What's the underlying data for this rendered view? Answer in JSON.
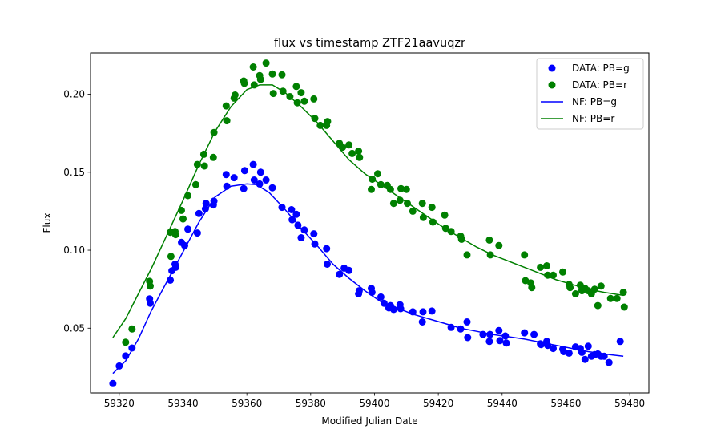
{
  "chart_data": {
    "type": "scatter",
    "title": "flux vs timestamp ZTF21aavuqzr",
    "xlabel": "Modified Julian Date",
    "ylabel": "Flux",
    "xlim": [
      59311,
      59486
    ],
    "ylim": [
      0.0085,
      0.2265
    ],
    "xticks": [
      59320,
      59340,
      59360,
      59380,
      59400,
      59420,
      59440,
      59460,
      59480
    ],
    "yticks": [
      0.05,
      0.1,
      0.15,
      0.2
    ],
    "grid": false,
    "legend_position": "top-right",
    "colors": {
      "g": "#0000ff",
      "r": "#008000"
    },
    "legend": [
      {
        "label": "DATA: PB=g",
        "kind": "marker",
        "color": "#0000ff"
      },
      {
        "label": "DATA: PB=r",
        "kind": "marker",
        "color": "#008000"
      },
      {
        "label": "NF: PB=g",
        "kind": "line",
        "color": "#0000ff"
      },
      {
        "label": "NF: PB=r",
        "kind": "line",
        "color": "#008000"
      }
    ],
    "series": [
      {
        "name": "DATA: PB=g",
        "kind": "scatter",
        "color": "#0000ff",
        "points": [
          [
            59318,
            0.0145
          ],
          [
            59320,
            0.0258
          ],
          [
            59322,
            0.0322
          ],
          [
            59324,
            0.0373
          ],
          [
            59329.5,
            0.0688
          ],
          [
            59329.7,
            0.066
          ],
          [
            59336,
            0.0808
          ],
          [
            59336.5,
            0.0868
          ],
          [
            59337.5,
            0.091
          ],
          [
            59337.7,
            0.089
          ],
          [
            59339.5,
            0.105
          ],
          [
            59340.5,
            0.103
          ],
          [
            59341.5,
            0.1135
          ],
          [
            59344.5,
            0.111
          ],
          [
            59345,
            0.1235
          ],
          [
            59347,
            0.1265
          ],
          [
            59347.2,
            0.13
          ],
          [
            59349.5,
            0.129
          ],
          [
            59349.7,
            0.1315
          ],
          [
            59353.5,
            0.1485
          ],
          [
            59353.7,
            0.141
          ],
          [
            59356,
            0.1465
          ],
          [
            59359,
            0.1395
          ],
          [
            59359.3,
            0.151
          ],
          [
            59362,
            0.155
          ],
          [
            59362.3,
            0.145
          ],
          [
            59364,
            0.1425
          ],
          [
            59364.3,
            0.15
          ],
          [
            59366,
            0.145
          ],
          [
            59368,
            0.14
          ],
          [
            59371,
            0.1275
          ],
          [
            59374,
            0.126
          ],
          [
            59374.2,
            0.1195
          ],
          [
            59375.5,
            0.123
          ],
          [
            59376,
            0.116
          ],
          [
            59377,
            0.108
          ],
          [
            59378,
            0.113
          ],
          [
            59381,
            0.1105
          ],
          [
            59381.3,
            0.104
          ],
          [
            59385,
            0.101
          ],
          [
            59385.2,
            0.091
          ],
          [
            59389,
            0.0845
          ],
          [
            59390.5,
            0.0885
          ],
          [
            59392,
            0.087
          ],
          [
            59395,
            0.072
          ],
          [
            59395.2,
            0.074
          ],
          [
            59399,
            0.0755
          ],
          [
            59399.2,
            0.073
          ],
          [
            59402,
            0.07
          ],
          [
            59403,
            0.066
          ],
          [
            59404.5,
            0.063
          ],
          [
            59405,
            0.0645
          ],
          [
            59406,
            0.062
          ],
          [
            59408,
            0.065
          ],
          [
            59408.2,
            0.0625
          ],
          [
            59412,
            0.0605
          ],
          [
            59415,
            0.054
          ],
          [
            59415.2,
            0.0605
          ],
          [
            59418,
            0.061
          ],
          [
            59424,
            0.0505
          ],
          [
            59427,
            0.0495
          ],
          [
            59429,
            0.054
          ],
          [
            59429.2,
            0.044
          ],
          [
            59434,
            0.046
          ],
          [
            59436,
            0.0415
          ],
          [
            59436.2,
            0.046
          ],
          [
            59439,
            0.0485
          ],
          [
            59439.3,
            0.042
          ],
          [
            59441,
            0.045
          ],
          [
            59441.3,
            0.0405
          ],
          [
            59447,
            0.047
          ],
          [
            59450,
            0.046
          ],
          [
            59452,
            0.04
          ],
          [
            59452.2,
            0.0395
          ],
          [
            59454,
            0.0415
          ],
          [
            59454.3,
            0.039
          ],
          [
            59456,
            0.037
          ],
          [
            59459,
            0.0365
          ],
          [
            59459.3,
            0.035
          ],
          [
            59461,
            0.034
          ],
          [
            59463,
            0.038
          ],
          [
            59464.5,
            0.037
          ],
          [
            59465,
            0.0345
          ],
          [
            59466,
            0.03
          ],
          [
            59467,
            0.0385
          ],
          [
            59468,
            0.032
          ],
          [
            59469,
            0.033
          ],
          [
            59470,
            0.0335
          ],
          [
            59471,
            0.032
          ],
          [
            59472,
            0.032
          ],
          [
            59473.5,
            0.028
          ],
          [
            59477,
            0.0415
          ]
        ]
      },
      {
        "name": "DATA: PB=r",
        "kind": "scatter",
        "color": "#008000",
        "points": [
          [
            59322,
            0.041
          ],
          [
            59324,
            0.0495
          ],
          [
            59329.5,
            0.08
          ],
          [
            59329.7,
            0.077
          ],
          [
            59336,
            0.1115
          ],
          [
            59336.2,
            0.096
          ],
          [
            59337.5,
            0.112
          ],
          [
            59337.7,
            0.11
          ],
          [
            59339.5,
            0.1255
          ],
          [
            59340,
            0.12
          ],
          [
            59341.5,
            0.135
          ],
          [
            59344,
            0.142
          ],
          [
            59344.5,
            0.155
          ],
          [
            59346.5,
            0.1615
          ],
          [
            59346.7,
            0.154
          ],
          [
            59349.5,
            0.1595
          ],
          [
            59349.7,
            0.1755
          ],
          [
            59353.5,
            0.1925
          ],
          [
            59353.7,
            0.183
          ],
          [
            59356,
            0.1975
          ],
          [
            59356.3,
            0.1995
          ],
          [
            59359,
            0.2085
          ],
          [
            59359.2,
            0.207
          ],
          [
            59362,
            0.2175
          ],
          [
            59362.3,
            0.206
          ],
          [
            59364,
            0.212
          ],
          [
            59364.3,
            0.2095
          ],
          [
            59366,
            0.22
          ],
          [
            59368,
            0.213
          ],
          [
            59368.3,
            0.2005
          ],
          [
            59371,
            0.2125
          ],
          [
            59371.3,
            0.202
          ],
          [
            59373.5,
            0.1985
          ],
          [
            59375.5,
            0.205
          ],
          [
            59375.8,
            0.1945
          ],
          [
            59377,
            0.201
          ],
          [
            59378,
            0.1955
          ],
          [
            59381,
            0.197
          ],
          [
            59381.3,
            0.1845
          ],
          [
            59383,
            0.18
          ],
          [
            59385,
            0.18
          ],
          [
            59385.3,
            0.1825
          ],
          [
            59389,
            0.1685
          ],
          [
            59390,
            0.166
          ],
          [
            59392,
            0.1675
          ],
          [
            59393,
            0.162
          ],
          [
            59395,
            0.1635
          ],
          [
            59395.3,
            0.1595
          ],
          [
            59399,
            0.139
          ],
          [
            59399.3,
            0.1455
          ],
          [
            59401,
            0.149
          ],
          [
            59402,
            0.142
          ],
          [
            59404,
            0.1415
          ],
          [
            59405,
            0.139
          ],
          [
            59406,
            0.13
          ],
          [
            59408,
            0.132
          ],
          [
            59408.3,
            0.1395
          ],
          [
            59410,
            0.139
          ],
          [
            59410.3,
            0.13
          ],
          [
            59412,
            0.125
          ],
          [
            59415,
            0.13
          ],
          [
            59415.3,
            0.121
          ],
          [
            59418,
            0.1275
          ],
          [
            59418.3,
            0.118
          ],
          [
            59422,
            0.1225
          ],
          [
            59422.3,
            0.114
          ],
          [
            59424,
            0.112
          ],
          [
            59427,
            0.109
          ],
          [
            59427.3,
            0.107
          ],
          [
            59429,
            0.097
          ],
          [
            59436,
            0.1065
          ],
          [
            59436.3,
            0.097
          ],
          [
            59439,
            0.103
          ],
          [
            59447,
            0.097
          ],
          [
            59447.3,
            0.0805
          ],
          [
            59449,
            0.079
          ],
          [
            59449.3,
            0.076
          ],
          [
            59452,
            0.089
          ],
          [
            59454,
            0.09
          ],
          [
            59454.3,
            0.084
          ],
          [
            59456,
            0.084
          ],
          [
            59459,
            0.086
          ],
          [
            59461,
            0.078
          ],
          [
            59461.3,
            0.076
          ],
          [
            59463,
            0.072
          ],
          [
            59464.5,
            0.0775
          ],
          [
            59465,
            0.074
          ],
          [
            59466,
            0.0755
          ],
          [
            59467,
            0.074
          ],
          [
            59468,
            0.072
          ],
          [
            59469,
            0.075
          ],
          [
            59470,
            0.0645
          ],
          [
            59471,
            0.077
          ],
          [
            59474,
            0.069
          ],
          [
            59476,
            0.069
          ],
          [
            59478,
            0.073
          ],
          [
            59478.3,
            0.0635
          ]
        ]
      },
      {
        "name": "NF: PB=g",
        "kind": "line",
        "color": "#0000ff",
        "points": [
          [
            59318,
            0.021
          ],
          [
            59322,
            0.029
          ],
          [
            59326,
            0.043
          ],
          [
            59330,
            0.061
          ],
          [
            59335,
            0.08
          ],
          [
            59340,
            0.099
          ],
          [
            59345,
            0.118
          ],
          [
            59350,
            0.134
          ],
          [
            59355,
            0.141
          ],
          [
            59360,
            0.1425
          ],
          [
            59363,
            0.142
          ],
          [
            59367,
            0.137
          ],
          [
            59372,
            0.126
          ],
          [
            59377,
            0.114
          ],
          [
            59382,
            0.103
          ],
          [
            59387,
            0.091
          ],
          [
            59392,
            0.082
          ],
          [
            59397,
            0.074
          ],
          [
            59402,
            0.067
          ],
          [
            59407,
            0.063
          ],
          [
            59412,
            0.059
          ],
          [
            59417,
            0.056
          ],
          [
            59422,
            0.053
          ],
          [
            59427,
            0.05
          ],
          [
            59432,
            0.048
          ],
          [
            59437,
            0.046
          ],
          [
            59442,
            0.0445
          ],
          [
            59447,
            0.043
          ],
          [
            59452,
            0.041
          ],
          [
            59457,
            0.039
          ],
          [
            59462,
            0.037
          ],
          [
            59467,
            0.035
          ],
          [
            59472,
            0.0335
          ],
          [
            59478,
            0.032
          ]
        ]
      },
      {
        "name": "NF: PB=r",
        "kind": "line",
        "color": "#008000",
        "points": [
          [
            59318,
            0.044
          ],
          [
            59322,
            0.056
          ],
          [
            59326,
            0.072
          ],
          [
            59330,
            0.088
          ],
          [
            59335,
            0.11
          ],
          [
            59340,
            0.132
          ],
          [
            59345,
            0.155
          ],
          [
            59350,
            0.176
          ],
          [
            59355,
            0.192
          ],
          [
            59360,
            0.203
          ],
          [
            59364,
            0.206
          ],
          [
            59368,
            0.206
          ],
          [
            59372,
            0.201
          ],
          [
            59377,
            0.192
          ],
          [
            59382,
            0.182
          ],
          [
            59387,
            0.17
          ],
          [
            59392,
            0.158
          ],
          [
            59397,
            0.149
          ],
          [
            59402,
            0.142
          ],
          [
            59407,
            0.135
          ],
          [
            59412,
            0.128
          ],
          [
            59417,
            0.121
          ],
          [
            59422,
            0.114
          ],
          [
            59427,
            0.108
          ],
          [
            59432,
            0.102
          ],
          [
            59437,
            0.097
          ],
          [
            59442,
            0.093
          ],
          [
            59447,
            0.089
          ],
          [
            59452,
            0.085
          ],
          [
            59457,
            0.081
          ],
          [
            59462,
            0.078
          ],
          [
            59467,
            0.075
          ],
          [
            59472,
            0.073
          ],
          [
            59478,
            0.071
          ]
        ]
      }
    ]
  }
}
